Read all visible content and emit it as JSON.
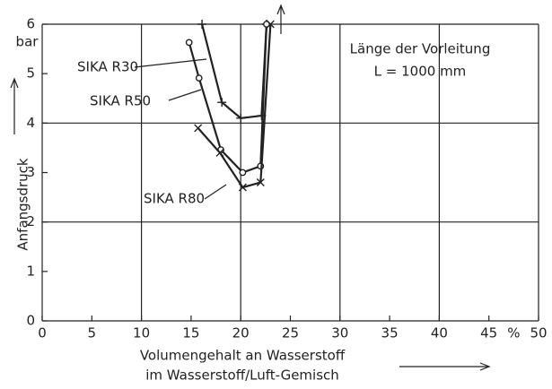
{
  "chart_data": {
    "type": "line",
    "y_label": "Anfangsdruck",
    "y_unit": "bar",
    "x_label_lines": [
      "Volumengehalt an Wasserstoff",
      "im Wasserstoff/Luft-Gemisch"
    ],
    "x_unit": "%",
    "annotation_lines": [
      "Länge der Vorleitung",
      "L = 1000 mm"
    ],
    "xlim": [
      0,
      50
    ],
    "xticks": [
      0,
      5,
      10,
      15,
      20,
      25,
      30,
      35,
      40,
      45,
      50
    ],
    "ylim": [
      0,
      6
    ],
    "yticks": [
      0,
      1,
      2,
      3,
      4,
      5,
      6
    ],
    "xgrid": [
      10,
      20,
      30,
      40,
      50
    ],
    "ygrid": [
      2,
      4,
      6
    ],
    "series": [
      {
        "name": "SIKA R30",
        "color": "#222222",
        "marker": "+",
        "x": [
          16.1,
          18.1,
          20.0,
          22.1,
          22.6
        ],
        "values": [
          6.0,
          4.42,
          4.1,
          4.15,
          6.0
        ]
      },
      {
        "name": "SIKA R50",
        "color": "#222222",
        "marker": "o",
        "x": [
          14.8,
          15.8,
          18.0,
          20.2,
          22.0,
          22.6
        ],
        "values": [
          5.63,
          4.91,
          3.46,
          3.0,
          3.13,
          6.0
        ]
      },
      {
        "name": "SIKA R80",
        "color": "#222222",
        "marker": "x",
        "x": [
          15.7,
          17.9,
          20.2,
          22.0,
          23.0
        ],
        "values": [
          3.9,
          3.4,
          2.7,
          2.8,
          6.0
        ]
      }
    ]
  }
}
